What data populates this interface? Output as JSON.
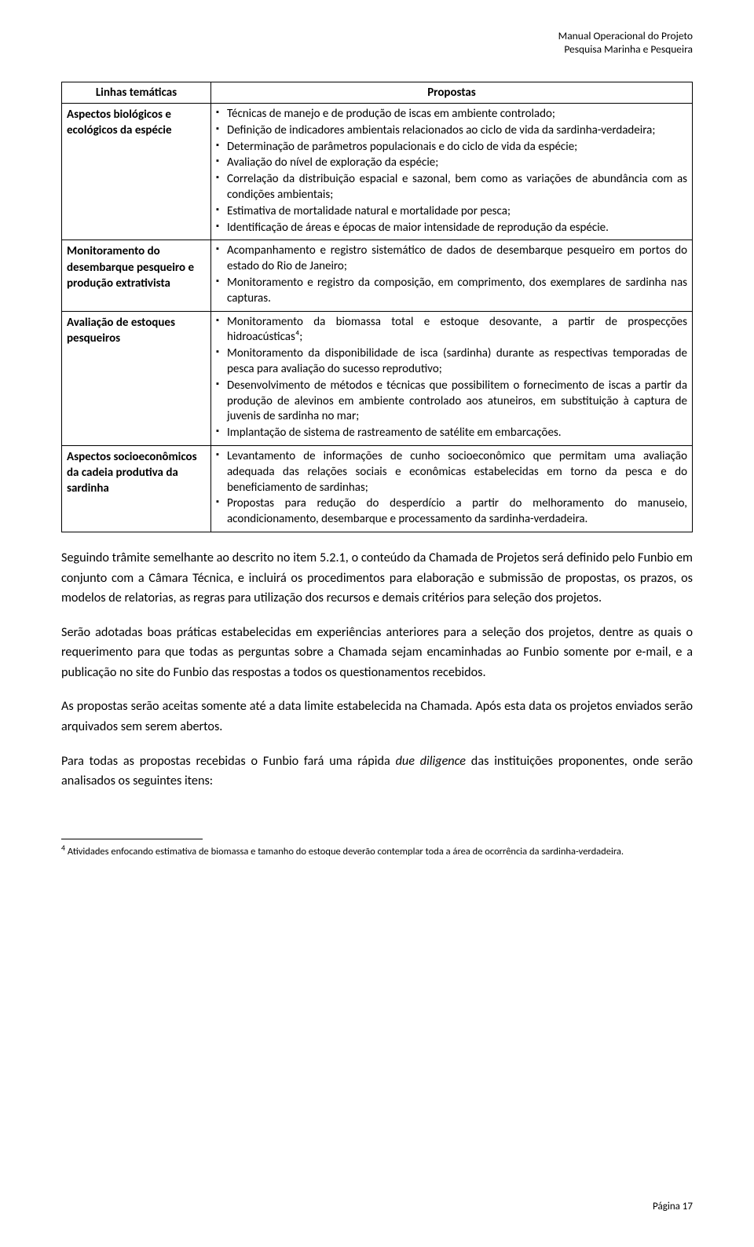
{
  "header": {
    "line1": "Manual Operacional do Projeto",
    "line2": "Pesquisa Marinha e Pesqueira"
  },
  "table": {
    "col1_header": "Linhas temáticas",
    "col2_header": "Propostas",
    "rows": [
      {
        "theme": "Aspectos biológicos e ecológicos da espécie",
        "items": [
          "Técnicas de manejo e de produção de iscas em ambiente controlado;",
          "Definição de indicadores ambientais relacionados ao ciclo de vida da sardinha-verdadeira;",
          "Determinação de parâmetros populacionais e do ciclo de vida da espécie;",
          "Avaliação do nível de exploração da espécie;",
          "Correlação da distribuição espacial e sazonal, bem como as variações de abundância com as condições ambientais;",
          "Estimativa de mortalidade natural e mortalidade por pesca;",
          "Identificação de áreas e épocas de maior intensidade de reprodução da espécie."
        ]
      },
      {
        "theme": "Monitoramento do desembarque pesqueiro e produção extrativista",
        "items": [
          "Acompanhamento e registro sistemático de dados de desembarque pesqueiro em portos do estado do Rio de Janeiro;",
          "Monitoramento e registro da composição, em comprimento, dos exemplares de sardinha nas capturas."
        ]
      },
      {
        "theme": "Avaliação de estoques pesqueiros",
        "items": [
          "Monitoramento da biomassa total e estoque desovante, a partir de prospecções hidroacústicas⁴;",
          "Monitoramento da disponibilidade de isca (sardinha) durante as respectivas temporadas de pesca para avaliação do sucesso reprodutivo;",
          "Desenvolvimento de métodos e técnicas que possibilitem o fornecimento de iscas a partir da produção de alevinos em ambiente controlado aos atuneiros, em substituição à captura de juvenis de sardinha no mar;",
          "Implantação de sistema de rastreamento de satélite em embarcações."
        ]
      },
      {
        "theme": "Aspectos socioeconômicos da cadeia produtiva da sardinha",
        "items": [
          "Levantamento de informações de cunho socioeconômico que permitam uma avaliação adequada das relações sociais e econômicas estabelecidas em torno da pesca e do beneficiamento de sardinhas;",
          "Propostas para redução do desperdício a partir do melhoramento do manuseio, acondicionamento, desembarque e processamento da sardinha-verdadeira."
        ]
      }
    ]
  },
  "paragraphs": {
    "p1": "Seguindo trâmite semelhante ao descrito no item 5.2.1, o conteúdo da Chamada de Projetos será definido pelo Funbio em conjunto com a Câmara Técnica, e incluirá os procedimentos para elaboração e submissão de propostas, os prazos, os modelos de relatorias, as regras para utilização dos recursos e demais critérios para seleção dos projetos.",
    "p2": "Serão adotadas boas práticas estabelecidas em experiências anteriores para a seleção dos projetos, dentre as quais o requerimento para que todas as perguntas sobre a Chamada sejam encaminhadas ao Funbio somente por e-mail, e a publicação no site do Funbio das respostas a todos os questionamentos recebidos.",
    "p3": "As propostas serão aceitas somente até a data limite estabelecida na Chamada. Após esta data os projetos enviados serão arquivados sem serem abertos.",
    "p4_pre": "Para todas as propostas recebidas o Funbio fará uma rápida ",
    "p4_italic": "due diligence",
    "p4_post": " das instituições proponentes, onde serão analisados os seguintes itens:"
  },
  "footnote": {
    "num": "4",
    "text": " Atividades enfocando estimativa de biomassa e tamanho do estoque deverão contemplar toda a área de ocorrência da sardinha-verdadeira."
  },
  "page_number": "Página 17"
}
